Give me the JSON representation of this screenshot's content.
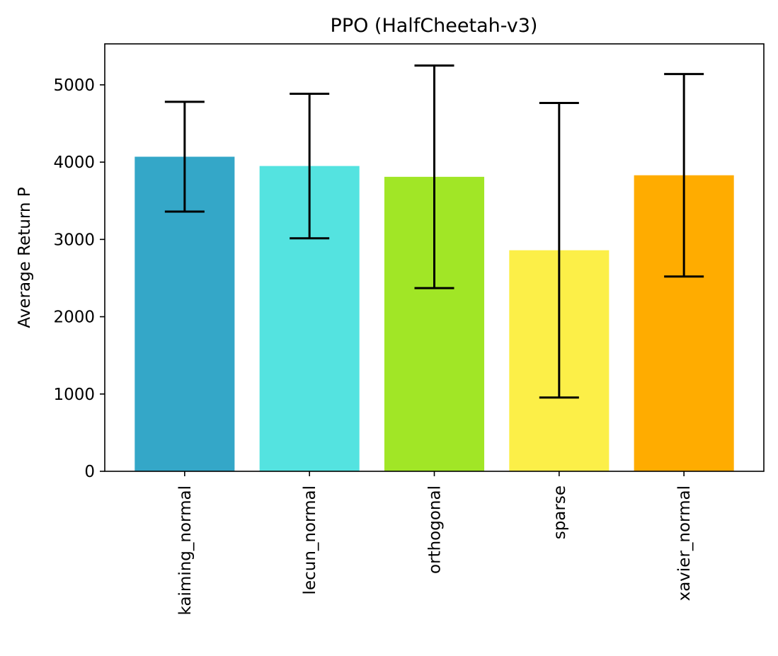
{
  "chart_data": {
    "type": "bar",
    "title": "PPO (HalfCheetah-v3)",
    "xlabel": "",
    "ylabel": "Average Return P",
    "categories": [
      "kaiming_normal",
      "lecun_normal",
      "orthogonal",
      "sparse",
      "xavier_normal"
    ],
    "values": [
      4070,
      3950,
      3810,
      2860,
      3830
    ],
    "error": [
      710,
      935,
      1440,
      1905,
      1310
    ],
    "colors": [
      "#34a7c8",
      "#54e3e0",
      "#a1e626",
      "#fcef48",
      "#ffac00"
    ],
    "ylim": [
      0,
      5530
    ],
    "yticks": [
      0,
      1000,
      2000,
      3000,
      4000,
      5000
    ],
    "ytick_labels": [
      "0",
      "1000",
      "2000",
      "3000",
      "4000",
      "5000"
    ],
    "grid": false,
    "legend": false
  }
}
